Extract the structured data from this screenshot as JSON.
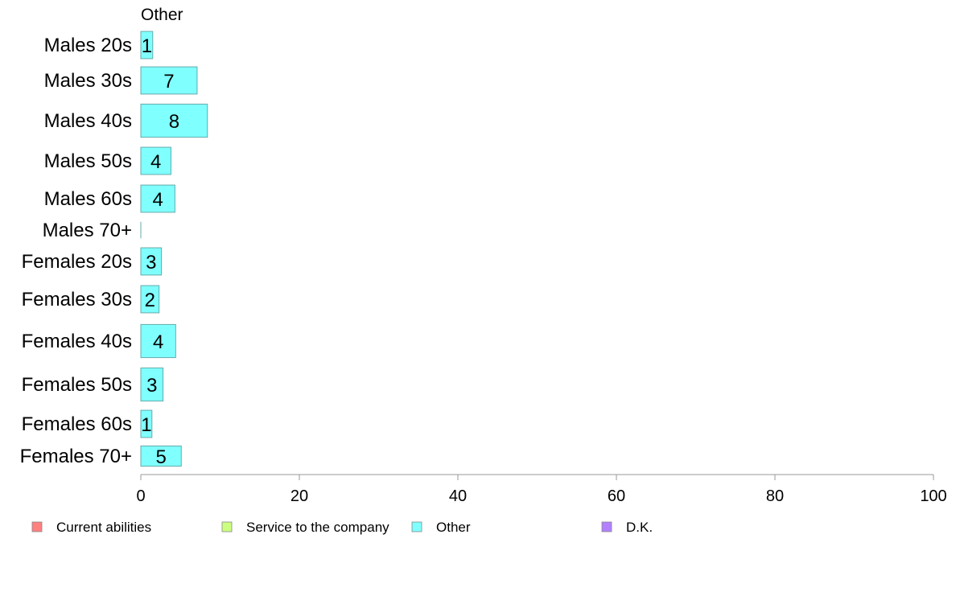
{
  "chart_data": {
    "type": "bar",
    "orientation": "horizontal",
    "panel_title": "Other",
    "categories": [
      "Males 20s",
      "Males 30s",
      "Males 40s",
      "Males 50s",
      "Males 60s",
      "Males 70+",
      "Females 20s",
      "Females 30s",
      "Females 40s",
      "Females 50s",
      "Females 60s",
      "Females 70+"
    ],
    "series": [
      {
        "name": "Other",
        "color": "#80ffff",
        "values": [
          1.5,
          7.1,
          8.4,
          3.8,
          4.3,
          0,
          2.6,
          2.3,
          4.4,
          2.8,
          1.4,
          5.1
        ],
        "labels": [
          "1",
          "7",
          "8",
          "4",
          "4",
          "",
          "3",
          "2",
          "4",
          "3",
          "1",
          "5"
        ]
      }
    ],
    "bar_relative_heights": [
      0.74,
      0.74,
      0.9,
      0.74,
      0.74,
      0.45,
      0.74,
      0.74,
      0.9,
      0.9,
      0.74,
      0.55
    ],
    "xlim": [
      0,
      100
    ],
    "xticks": [
      "0",
      "20",
      "40",
      "60",
      "80",
      "100"
    ],
    "grid": false,
    "legend_position": "bottom",
    "legend": [
      {
        "label": "Current abilities",
        "color": "#ff8080"
      },
      {
        "label": "Service to the company",
        "color": "#ccff80"
      },
      {
        "label": "Other",
        "color": "#80ffff"
      },
      {
        "label": "D.K.",
        "color": "#b380ff"
      }
    ],
    "bar_stroke": "#66aaaa",
    "axis_color": "#999999"
  }
}
